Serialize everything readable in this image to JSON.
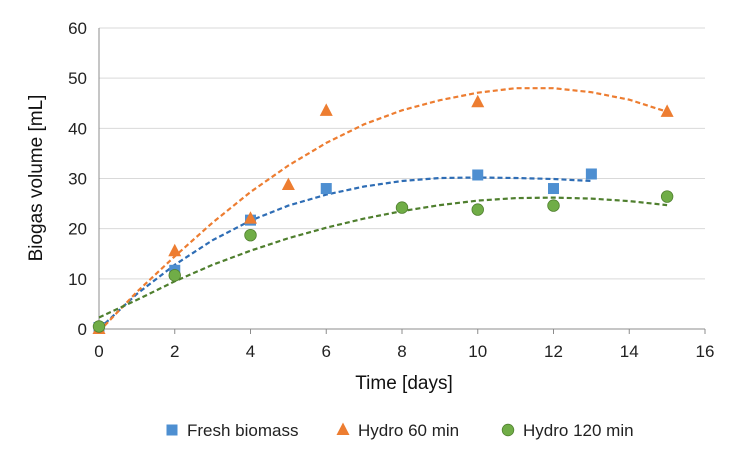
{
  "chart_data": {
    "type": "scatter",
    "title": "",
    "xlabel": "Time [days]",
    "ylabel": "Biogas volume [mL]",
    "xlim": [
      0,
      16
    ],
    "ylim": [
      0,
      60
    ],
    "xticks": [
      "0",
      "2",
      "4",
      "6",
      "8",
      "10",
      "12",
      "14",
      "16"
    ],
    "yticks": [
      "0",
      "10",
      "20",
      "30",
      "40",
      "50",
      "60"
    ],
    "grid": "horizontal",
    "legend_position": "bottom",
    "series": [
      {
        "name": "Fresh biomass",
        "marker": "square",
        "color": "#4e8fd1",
        "trend_color": "#2e6db5",
        "x": [
          0,
          2,
          4,
          6,
          10,
          12,
          13
        ],
        "y": [
          0.3,
          11.7,
          21.7,
          28,
          30.7,
          28,
          30.9
        ],
        "trendline": {
          "x": [
            0,
            1,
            2,
            3,
            4,
            5,
            6,
            7,
            8,
            9,
            10,
            11,
            12,
            13
          ],
          "y": [
            0,
            7,
            12.8,
            17.7,
            21.6,
            24.6,
            26.8,
            28.4,
            29.5,
            30.1,
            30.2,
            30.1,
            29.9,
            29.5
          ]
        }
      },
      {
        "name": "Hydro 60 min",
        "marker": "triangle",
        "color": "#ed7d31",
        "trend_color": "#ed7d31",
        "x": [
          0,
          2,
          4,
          5,
          6,
          10,
          15
        ],
        "y": [
          0,
          15.5,
          22,
          28.7,
          43.5,
          45.2,
          43.3
        ],
        "trendline": {
          "x": [
            0,
            1,
            2,
            3,
            4,
            5,
            6,
            7,
            8,
            9,
            10,
            11,
            12,
            13,
            14,
            15
          ],
          "y": [
            -0.5,
            7.4,
            14.5,
            21.2,
            27.3,
            32.6,
            37.1,
            40.8,
            43.6,
            45.6,
            47.1,
            48,
            48,
            47.2,
            45.7,
            43.3
          ]
        }
      },
      {
        "name": "Hydro 120 min",
        "marker": "circle",
        "color": "#70ad47",
        "trend_color": "#4f7f2e",
        "x": [
          0,
          2,
          4,
          8,
          10,
          12,
          15
        ],
        "y": [
          0.5,
          10.7,
          18.7,
          24.2,
          23.8,
          24.6,
          26.4
        ],
        "trendline": {
          "x": [
            0,
            1,
            2,
            3,
            4,
            5,
            6,
            7,
            8,
            9,
            10,
            11,
            12,
            13,
            14,
            15
          ],
          "y": [
            2.3,
            5.8,
            9.5,
            12.8,
            15.6,
            18.1,
            20.2,
            22,
            23.5,
            24.7,
            25.6,
            26.1,
            26.2,
            26,
            25.5,
            24.7
          ]
        }
      }
    ]
  }
}
